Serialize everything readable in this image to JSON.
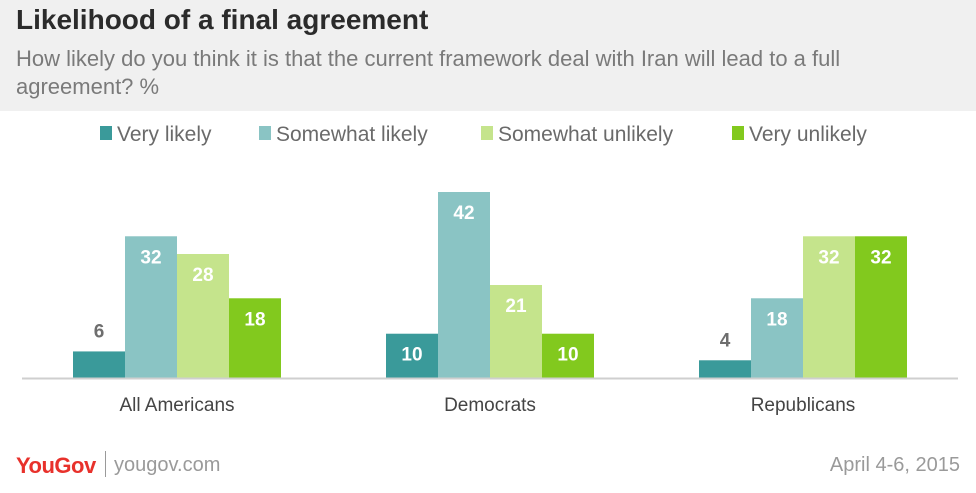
{
  "chart_data": {
    "type": "bar",
    "title": "Likelihood of a final agreement",
    "subtitle": "How likely do you think it is that the current framework deal with Iran will lead to a full agreement? %",
    "categories": [
      "All Americans",
      "Democrats",
      "Republicans"
    ],
    "series": [
      {
        "name": "Very likely",
        "values": [
          6,
          10,
          4
        ],
        "color": "#3a9a9a"
      },
      {
        "name": "Somewhat likely",
        "values": [
          32,
          42,
          18
        ],
        "color": "#8ac4c4"
      },
      {
        "name": "Somewhat unlikely",
        "values": [
          28,
          21,
          32
        ],
        "color": "#c5e48c"
      },
      {
        "name": "Very unlikely",
        "values": [
          18,
          10,
          32
        ],
        "color": "#82c91e"
      }
    ],
    "ylim": [
      0,
      42
    ],
    "grid": false,
    "legend": "top",
    "label_color_light": "#ffffff",
    "label_color_dark": "#6e6e6e"
  },
  "footer": {
    "logo": "YouGov",
    "site": "yougov.com",
    "date": "April 4-6, 2015"
  }
}
